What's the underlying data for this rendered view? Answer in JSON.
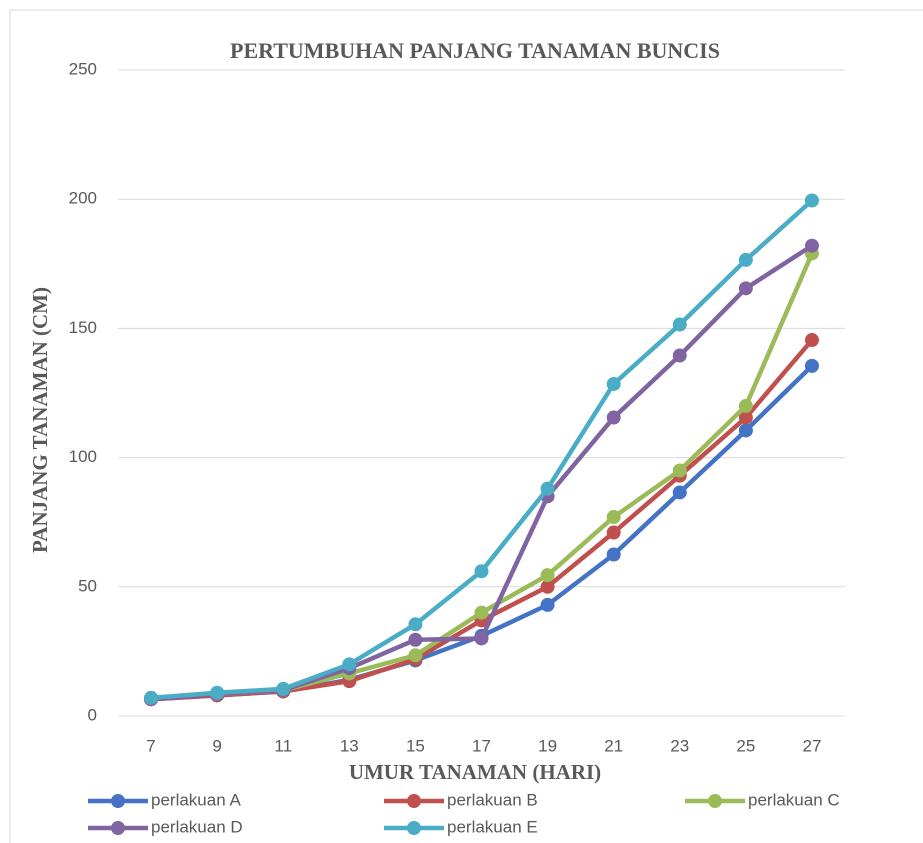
{
  "chart_data": {
    "type": "line",
    "title": "PERTUMBUHAN PANJANG TANAMAN BUNCIS",
    "x_label": "UMUR TANAMAN (HARI)",
    "y_label": "PANJANG  TANAMAN (CM)",
    "x": [
      7,
      9,
      11,
      13,
      15,
      17,
      19,
      21,
      23,
      25,
      27
    ],
    "xlim": [
      6,
      28
    ],
    "xticks": [
      7,
      9,
      11,
      13,
      15,
      17,
      19,
      21,
      23,
      25,
      27
    ],
    "ylim": [
      0,
      250
    ],
    "yticks": [
      0,
      50,
      100,
      150,
      200,
      250
    ],
    "grid": true,
    "legend": "bottom",
    "series": [
      {
        "name": "perlakuan A",
        "color": "#4472c4",
        "values": [
          6.5,
          8,
          9.5,
          14,
          21.5,
          31,
          43,
          62.5,
          86.5,
          110.5,
          135.5
        ]
      },
      {
        "name": "perlakuan B",
        "color": "#c0504d",
        "values": [
          6.5,
          8,
          9.5,
          13.5,
          22,
          37,
          50,
          71,
          93,
          115.5,
          145.5
        ]
      },
      {
        "name": "perlakuan C",
        "color": "#9bbb59",
        "values": [
          7,
          8.5,
          10,
          16.5,
          23.5,
          40,
          54.5,
          77,
          95,
          120,
          179
        ]
      },
      {
        "name": "perlakuan D",
        "color": "#8064a2",
        "values": [
          6.5,
          8.5,
          10,
          18.5,
          29.5,
          30,
          85,
          115.5,
          139.5,
          165.5,
          182
        ]
      },
      {
        "name": "perlakuan E",
        "color": "#4bacc6",
        "values": [
          7,
          9,
          10.5,
          20,
          35.5,
          56,
          88,
          128.5,
          151.5,
          176.5,
          199.5
        ]
      }
    ]
  }
}
